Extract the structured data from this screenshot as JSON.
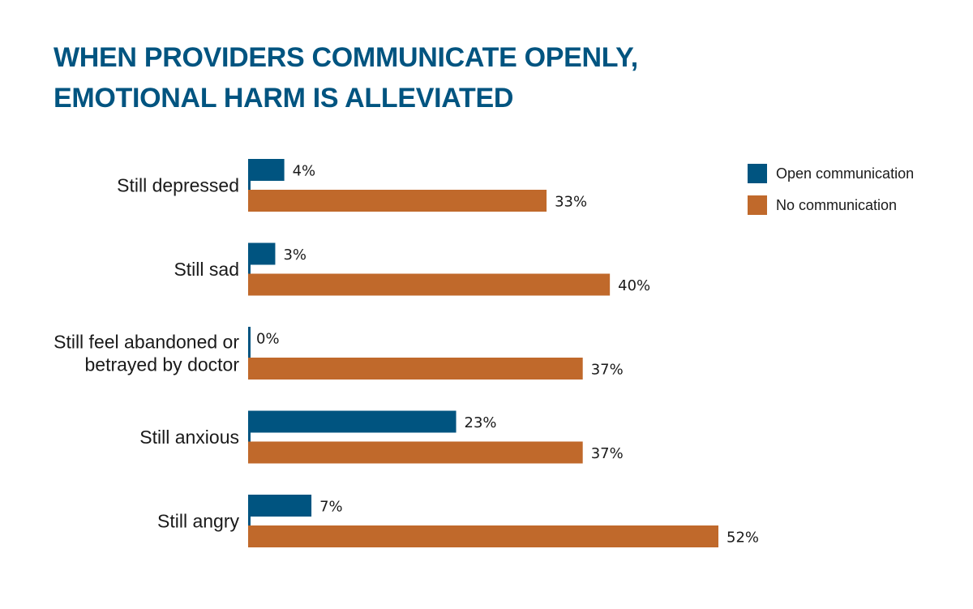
{
  "title": {
    "line1": "WHEN PROVIDERS COMMUNICATE OPENLY,",
    "line2": "EMOTIONAL HARM IS ALLEVIATED"
  },
  "colors": {
    "title": "#005480",
    "open": "#005480",
    "none": "#C0692B",
    "axis": "#005480"
  },
  "legend": [
    {
      "label": "Open communication",
      "color": "#005480"
    },
    {
      "label": "No communication",
      "color": "#C0692B"
    }
  ],
  "chart_data": {
    "type": "bar",
    "orientation": "horizontal",
    "title": "WHEN PROVIDERS COMMUNICATE OPENLY, EMOTIONAL HARM IS ALLEVIATED",
    "categories": [
      [
        "Still depressed"
      ],
      [
        "Still sad"
      ],
      [
        "Still feel abandoned or",
        "betrayed by doctor"
      ],
      [
        "Still anxious"
      ],
      [
        "Still angry"
      ]
    ],
    "series": [
      {
        "name": "Open communication",
        "values": [
          4,
          3,
          0,
          23,
          7
        ],
        "labels": [
          "4%",
          "3%",
          "0%",
          "23%",
          "7%"
        ]
      },
      {
        "name": "No communication",
        "values": [
          33,
          40,
          37,
          37,
          52
        ],
        "labels": [
          "33%",
          "40%",
          "37%",
          "37%",
          "52%"
        ]
      }
    ],
    "xlim": [
      0,
      52
    ],
    "xlabel": "",
    "ylabel": "",
    "grid": false,
    "legend_position": "top-right"
  }
}
